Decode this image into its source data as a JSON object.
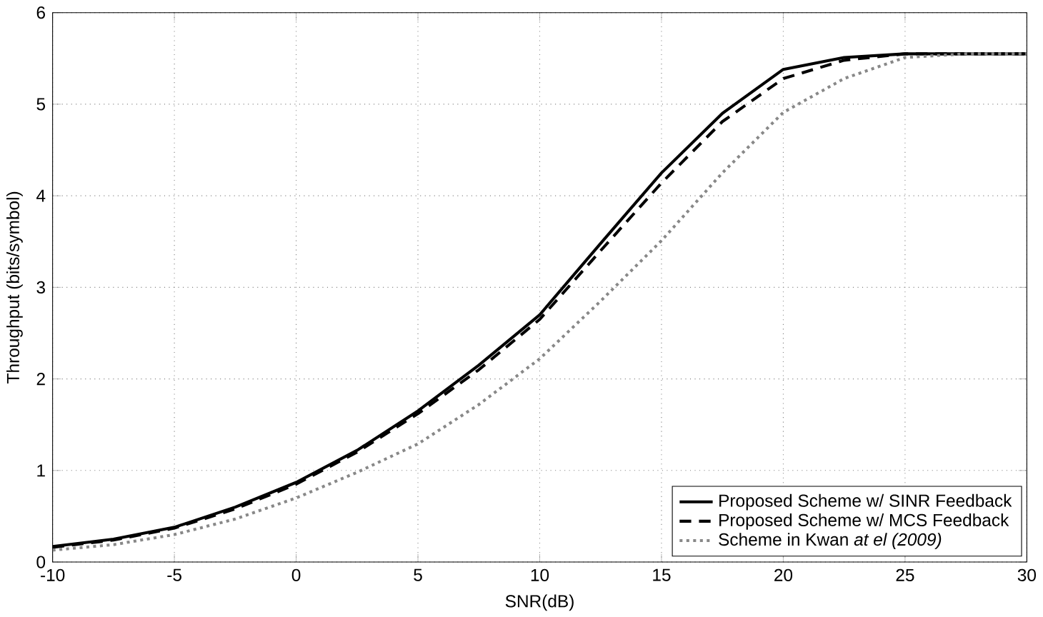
{
  "chart_data": {
    "type": "line",
    "xlabel": "SNR(dB)",
    "ylabel": "Throughput (bits/symbol)",
    "xlim": [
      -10,
      30
    ],
    "ylim": [
      0,
      6
    ],
    "xticks": [
      -10,
      -5,
      0,
      5,
      10,
      15,
      20,
      25,
      30
    ],
    "yticks": [
      0,
      1,
      2,
      3,
      4,
      5,
      6
    ],
    "grid": true,
    "legend": "bottom right",
    "x": [
      -10,
      -7.5,
      -5,
      -2.5,
      0,
      2.5,
      5,
      7.5,
      10,
      12.5,
      15,
      17.5,
      20,
      22.5,
      25,
      27.5,
      30
    ],
    "series": [
      {
        "name": "Proposed Scheme w/ SINR Feedback",
        "color": "#000000",
        "line_style": "solid",
        "values": [
          0.17,
          0.25,
          0.38,
          0.6,
          0.87,
          1.22,
          1.65,
          2.15,
          2.7,
          3.48,
          4.25,
          4.9,
          5.38,
          5.51,
          5.55,
          5.55,
          5.55
        ]
      },
      {
        "name": "Proposed Scheme w/ MCS Feedback",
        "color": "#000000",
        "line_style": "dashed",
        "values": [
          0.16,
          0.24,
          0.37,
          0.58,
          0.85,
          1.2,
          1.62,
          2.1,
          2.65,
          3.4,
          4.14,
          4.81,
          5.28,
          5.48,
          5.55,
          5.55,
          5.55
        ]
      },
      {
        "name": "Scheme in Kwan *at el (2009)*",
        "color": "#888888",
        "line_style": "dotted",
        "values": [
          0.13,
          0.19,
          0.3,
          0.47,
          0.7,
          0.98,
          1.29,
          1.72,
          2.22,
          2.85,
          3.51,
          4.25,
          4.91,
          5.28,
          5.51,
          5.55,
          5.55
        ]
      }
    ]
  }
}
